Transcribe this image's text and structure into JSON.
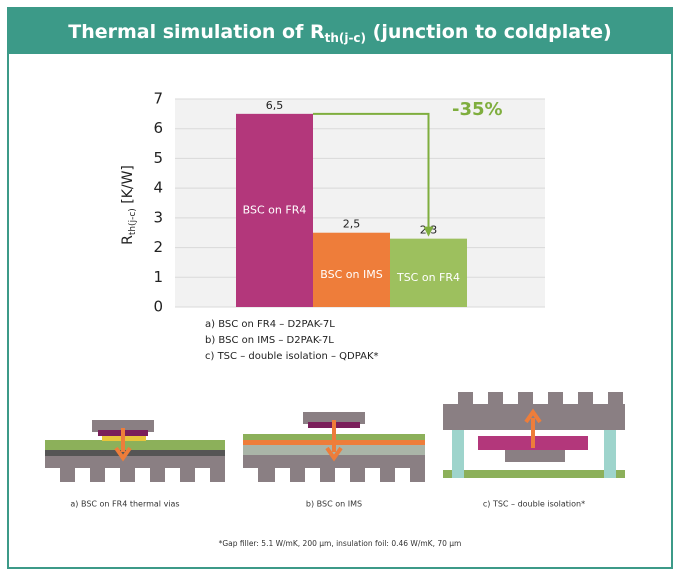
{
  "chart_data": {
    "type": "bar",
    "title": {
      "main": "Thermal simulation of R",
      "sub": "th(j-c)",
      "rest": " (junction to coldplate)"
    },
    "y_label": {
      "main": "R",
      "sub": "th(j-c)",
      "rest": " [K/W]"
    },
    "categories": [
      "BSC on FR4",
      "BSC on IMS",
      "TSC on FR4"
    ],
    "values": [
      6.5,
      2.5,
      2.3
    ],
    "value_labels": [
      "6,5",
      "2,5",
      "2,3"
    ],
    "colors": [
      "#b3377b",
      "#ee7d3a",
      "#9dc05e"
    ],
    "ylim": [
      0,
      7
    ],
    "yticks": [
      0,
      1,
      2,
      3,
      4,
      5,
      6,
      7
    ],
    "grid": true,
    "annotation": "-35%",
    "notes": [
      "a) BSC on FR4 – D2PAK-7L",
      "b) BSC on IMS – D2PAK-7L",
      "c) TSC – double isolation – QDPAK*"
    ],
    "diagram_captions": [
      "a) BSC on FR4 thermal vias",
      "b) BSC on IMS",
      "c) TSC – double isolation*"
    ],
    "footnote": "*Gap filler: 5.1 W/mK, 200 µm, insulation foil: 0.46 W/mK, 70 µm"
  }
}
